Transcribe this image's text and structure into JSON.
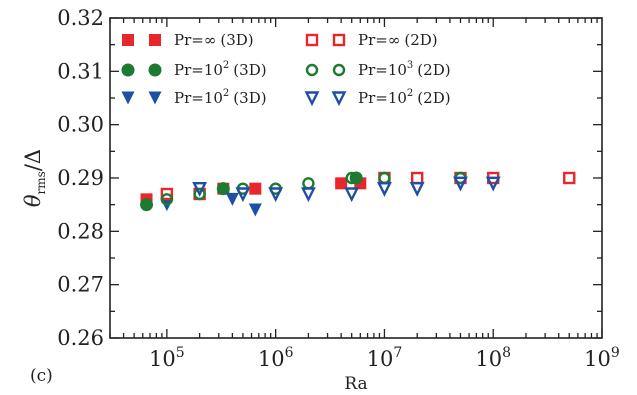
{
  "chart_data": {
    "type": "scatter",
    "panel_label": "(c)",
    "xlabel": "Ra",
    "ylabel": {
      "main": "θ",
      "sub": "rms",
      "tail": "/Δ"
    },
    "xscale": "log",
    "xlim": [
      30000,
      1000000000
    ],
    "ylim": [
      0.26,
      0.32
    ],
    "x_ticks": [
      {
        "value": 100000,
        "base": "10",
        "exp": "5"
      },
      {
        "value": 1000000,
        "base": "10",
        "exp": "6"
      },
      {
        "value": 10000000,
        "base": "10",
        "exp": "7"
      },
      {
        "value": 100000000,
        "base": "10",
        "exp": "8"
      },
      {
        "value": 1000000000,
        "base": "10",
        "exp": "9"
      }
    ],
    "y_ticks": [
      {
        "value": 0.26,
        "label": "0.26"
      },
      {
        "value": 0.27,
        "label": "0.27"
      },
      {
        "value": 0.28,
        "label": "0.28"
      },
      {
        "value": 0.29,
        "label": "0.29"
      },
      {
        "value": 0.3,
        "label": "0.30"
      },
      {
        "value": 0.31,
        "label": "0.31"
      },
      {
        "value": 0.32,
        "label": "0.32"
      }
    ],
    "grid": false,
    "legend_position": "top",
    "series": [
      {
        "name": "Pr=∞ (3D)",
        "label_pre": "Pr",
        "label_eq": "=∞",
        "label_sup": "",
        "label_dim": "(3D)",
        "marker": "square",
        "filled": true,
        "color": "#e8262b",
        "points": [
          [
            65000,
            0.286
          ],
          [
            330000,
            0.288
          ],
          [
            650000,
            0.288
          ],
          [
            4000000,
            0.289
          ],
          [
            6000000,
            0.289
          ]
        ]
      },
      {
        "name": "Pr=10² (3D)",
        "label_pre": "Pr",
        "label_eq": "=10",
        "label_sup": "2",
        "label_dim": "(3D)",
        "marker": "circle",
        "filled": true,
        "color": "#1c7a31",
        "points": [
          [
            65000,
            0.285
          ],
          [
            330000,
            0.288
          ],
          [
            5500000,
            0.29
          ]
        ]
      },
      {
        "name": "Pr=10² (3D)",
        "label_pre": "Pr",
        "label_eq": "=10",
        "label_sup": "2",
        "label_dim": "(3D)",
        "marker": "triangle-down",
        "filled": true,
        "color": "#1f4fa3",
        "points": [
          [
            100000,
            0.285
          ],
          [
            400000,
            0.286
          ],
          [
            650000,
            0.284
          ]
        ]
      },
      {
        "name": "Pr=∞ (2D)",
        "label_pre": "Pr",
        "label_eq": "=∞",
        "label_sup": "",
        "label_dim": "(2D)",
        "marker": "square",
        "filled": false,
        "color": "#e8262b",
        "points": [
          [
            100000,
            0.287
          ],
          [
            200000,
            0.287
          ],
          [
            10000000,
            0.29
          ],
          [
            20000000,
            0.29
          ],
          [
            50000000,
            0.29
          ],
          [
            100000000,
            0.29
          ],
          [
            500000000,
            0.29
          ]
        ]
      },
      {
        "name": "Pr=10³ (2D)",
        "label_pre": "Pr",
        "label_eq": "=10",
        "label_sup": "3",
        "label_dim": "(2D)",
        "marker": "circle",
        "filled": false,
        "color": "#1c7a31",
        "points": [
          [
            100000,
            0.286
          ],
          [
            200000,
            0.287
          ],
          [
            500000,
            0.288
          ],
          [
            1000000,
            0.288
          ],
          [
            2000000,
            0.289
          ],
          [
            5000000,
            0.29
          ],
          [
            10000000,
            0.29
          ],
          [
            50000000,
            0.29
          ]
        ]
      },
      {
        "name": "Pr=10² (2D)",
        "label_pre": "Pr",
        "label_eq": "=10",
        "label_sup": "2",
        "label_dim": "(2D)",
        "marker": "triangle-down",
        "filled": false,
        "color": "#1f4fa3",
        "points": [
          [
            200000,
            0.288
          ],
          [
            500000,
            0.287
          ],
          [
            1000000,
            0.287
          ],
          [
            2000000,
            0.287
          ],
          [
            5000000,
            0.287
          ],
          [
            10000000,
            0.288
          ],
          [
            20000000,
            0.288
          ],
          [
            50000000,
            0.289
          ],
          [
            100000000,
            0.289
          ]
        ]
      }
    ]
  }
}
